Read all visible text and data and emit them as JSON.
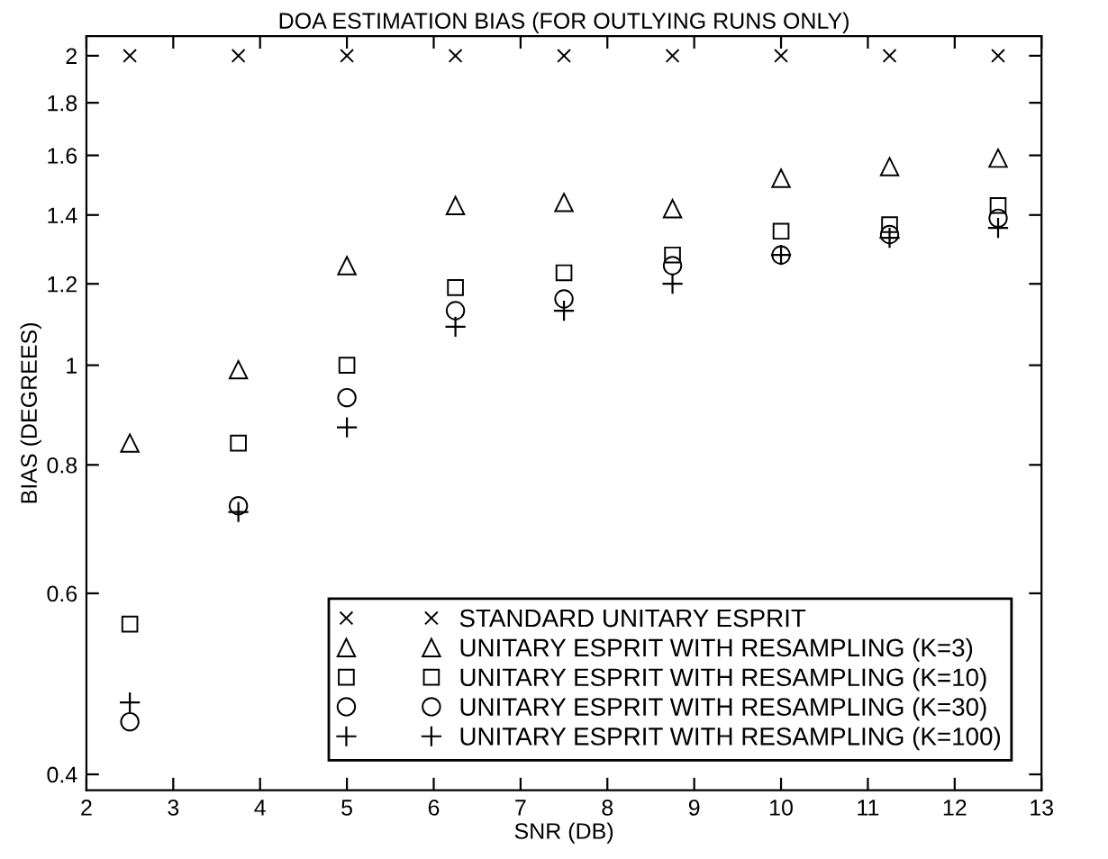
{
  "chart_data": {
    "type": "scatter",
    "title": "DOA ESTIMATION BIAS (FOR OUTLYING RUNS ONLY)",
    "xlabel": "SNR (DB)",
    "ylabel": "BIAS (DEGREES)",
    "x": [
      2.5,
      3.75,
      5,
      6.25,
      7.5,
      8.75,
      10,
      11.25,
      12.5
    ],
    "series": [
      {
        "name": "STANDARD UNITARY ESPRIT",
        "color": "#000000",
        "marker": "cross",
        "values": [
          2,
          2,
          2,
          2,
          2,
          2,
          2,
          2,
          2
        ]
      },
      {
        "name": "UNITARY ESPRIT WITH RESAMPLING (K=3)",
        "color": "#000000",
        "marker": "triangle",
        "values": [
          0.84,
          0.99,
          1.25,
          1.43,
          1.44,
          1.42,
          1.52,
          1.56,
          1.59
        ]
      },
      {
        "name": "UNITARY ESPRIT WITH RESAMPLING (K=10)",
        "color": "#000000",
        "marker": "square",
        "values": [
          0.56,
          0.84,
          1.0,
          1.19,
          1.23,
          1.28,
          1.35,
          1.37,
          1.43
        ]
      },
      {
        "name": "UNITARY ESPRIT WITH RESAMPLING (K=30)",
        "color": "#000000",
        "marker": "circle",
        "values": [
          0.45,
          0.73,
          0.93,
          1.13,
          1.16,
          1.25,
          1.28,
          1.34,
          1.39
        ]
      },
      {
        "name": "UNITARY ESPRIT WITH RESAMPLING (K=100)",
        "color": "#000000",
        "marker": "plus",
        "values": [
          0.47,
          0.72,
          0.87,
          1.09,
          1.13,
          1.2,
          1.28,
          1.33,
          1.36
        ]
      }
    ],
    "log": "y",
    "xlim": [
      2,
      13
    ],
    "xticks": [
      2,
      3,
      4,
      5,
      6,
      7,
      8,
      9,
      10,
      11,
      12,
      13
    ],
    "ylim": [
      0.386,
      2.09
    ],
    "yticks": [
      0.4,
      0.6,
      0.8,
      1,
      1.2,
      1.4,
      1.6,
      1.8,
      2
    ],
    "grid": false,
    "legend": "bottom right"
  }
}
